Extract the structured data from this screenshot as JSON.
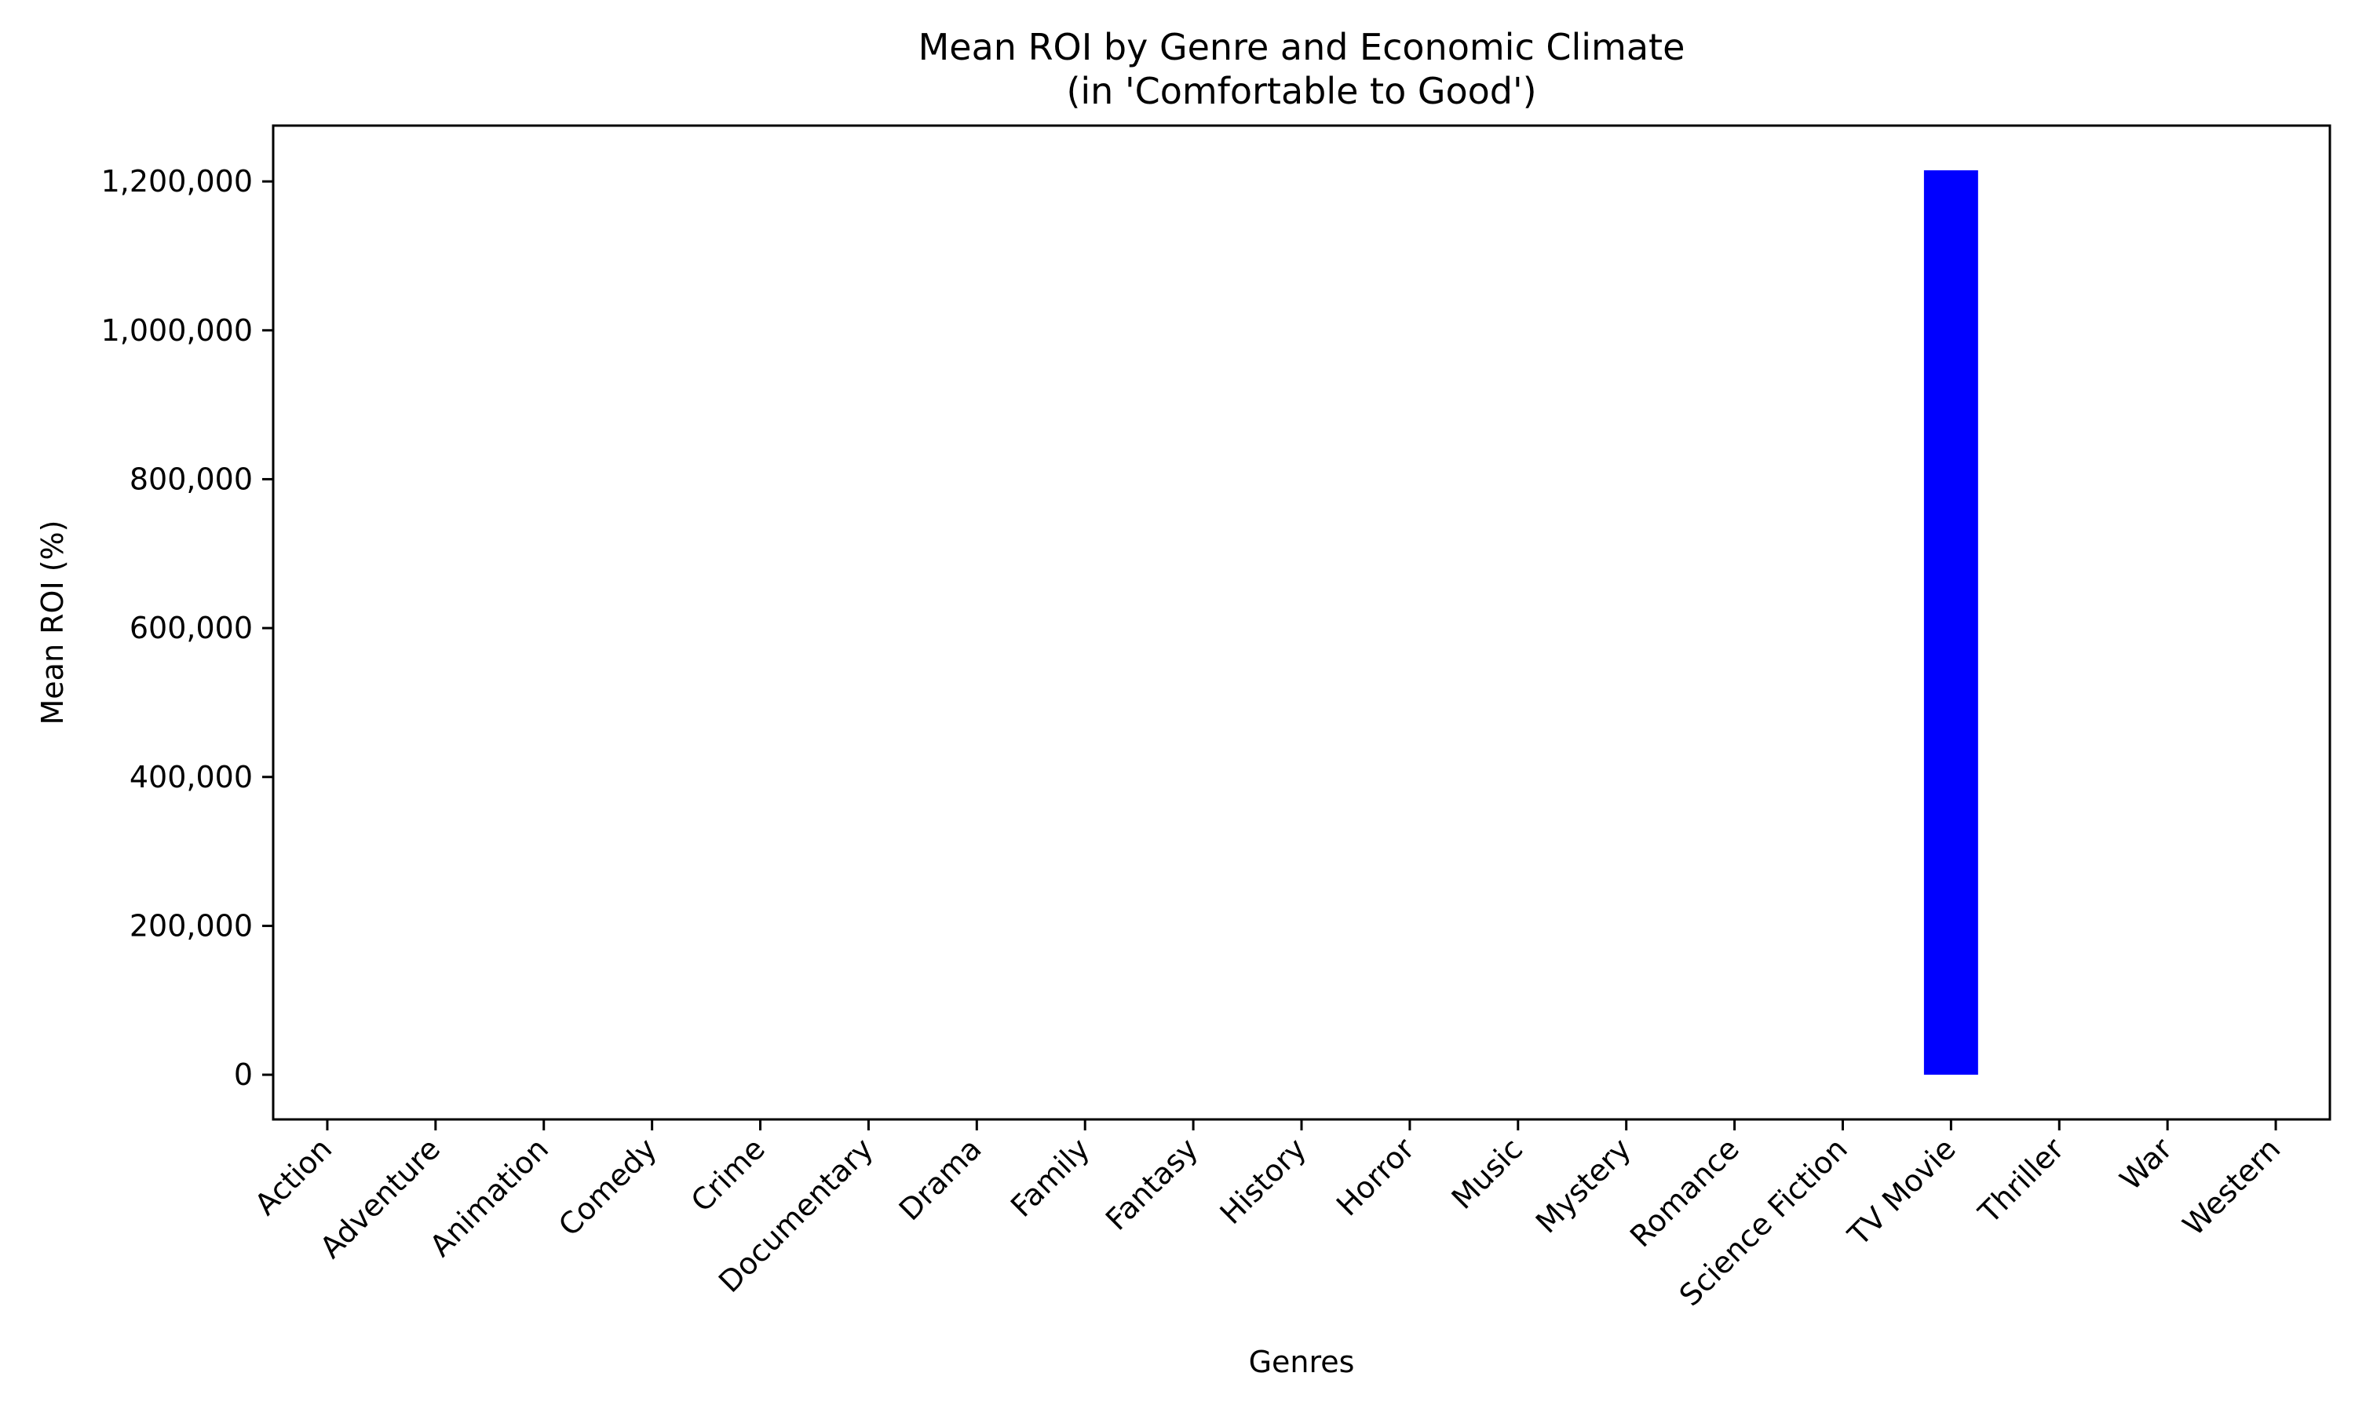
{
  "chart_data": {
    "type": "bar",
    "title": "Mean ROI by Genre and Economic Climate",
    "subtitle": "(in 'Comfortable to Good')",
    "xlabel": "Genres",
    "ylabel": "Mean ROI (%)",
    "categories": [
      "Action",
      "Adventure",
      "Animation",
      "Comedy",
      "Crime",
      "Documentary",
      "Drama",
      "Family",
      "Fantasy",
      "History",
      "Horror",
      "Music",
      "Mystery",
      "Romance",
      "Science Fiction",
      "TV Movie",
      "Thriller",
      "War",
      "Western"
    ],
    "values": [
      0,
      0,
      0,
      0,
      0,
      0,
      0,
      0,
      0,
      0,
      0,
      0,
      0,
      0,
      0,
      1215000,
      0,
      0,
      0
    ],
    "ylim": [
      -60000,
      1275000
    ],
    "yticks": [
      0,
      200000,
      400000,
      600000,
      800000,
      1000000,
      1200000
    ],
    "ytick_labels": [
      "0",
      "200,000",
      "400,000",
      "600,000",
      "800,000",
      "1,000,000",
      "1,200,000"
    ],
    "bar_color": "#0000ff",
    "grid": false,
    "legend": "none"
  }
}
